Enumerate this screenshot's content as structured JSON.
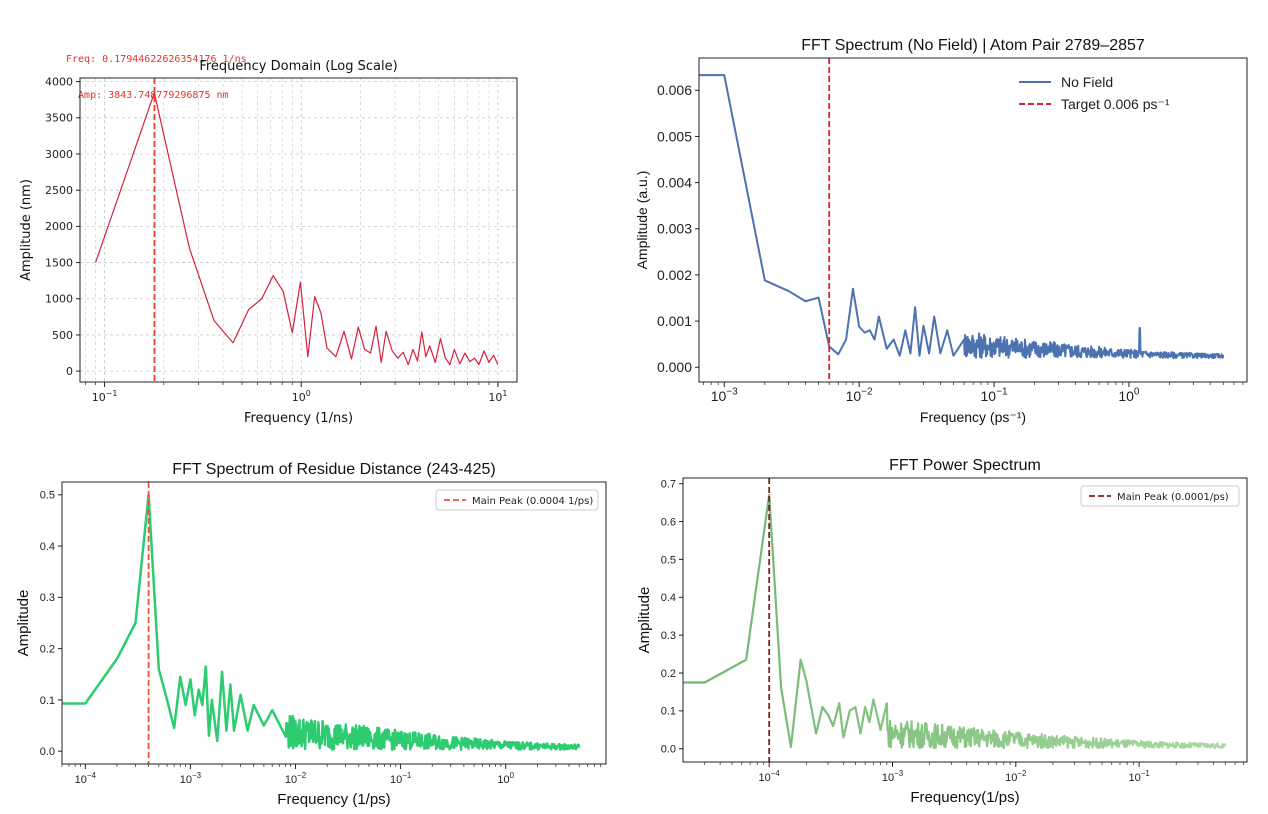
{
  "readout": {
    "freq": "Freq: 0.17944622626354176 1/ns",
    "amp": "  Amp: 3843.748779296875 nm"
  },
  "chart_data": [
    {
      "type": "line",
      "title": "Frequency Domain (Log Scale)",
      "xlabel": "Frequency (1/ns)",
      "ylabel": "Amplitude (nm)",
      "xscale": "log",
      "xlim": [
        0.075,
        12.5
      ],
      "ylim": [
        -150,
        4050
      ],
      "yticks": [
        "0",
        "500",
        "1000",
        "1500",
        "2000",
        "2500",
        "3000",
        "3500",
        "4000"
      ],
      "xticks": [
        {
          "value": 0.1,
          "base": "10",
          "exp": "−1"
        },
        {
          "value": 1,
          "base": "10",
          "exp": "0"
        },
        {
          "value": 10,
          "base": "10",
          "exp": "1"
        }
      ],
      "grid": true,
      "color": "#d6213b",
      "vline": {
        "x": 0.1794,
        "color": "#e8402a"
      },
      "x": [
        0.09,
        0.179,
        0.27,
        0.36,
        0.45,
        0.54,
        0.63,
        0.72,
        0.81,
        0.9,
        0.99,
        1.08,
        1.17,
        1.26,
        1.35,
        1.5,
        1.65,
        1.8,
        1.95,
        2.1,
        2.25,
        2.4,
        2.55,
        2.7,
        2.9,
        3.1,
        3.3,
        3.5,
        3.7,
        3.9,
        4.1,
        4.3,
        4.5,
        4.8,
        5.1,
        5.4,
        5.7,
        6.0,
        6.4,
        6.8,
        7.2,
        7.6,
        8.0,
        8.5,
        9.0,
        9.5,
        10.0
      ],
      "values": [
        1500,
        3844,
        1700,
        700,
        390,
        850,
        1000,
        1320,
        1100,
        530,
        1230,
        200,
        1030,
        800,
        320,
        200,
        550,
        170,
        610,
        300,
        250,
        620,
        120,
        550,
        280,
        180,
        260,
        90,
        300,
        140,
        540,
        200,
        350,
        120,
        450,
        180,
        90,
        300,
        100,
        250,
        130,
        180,
        90,
        280,
        120,
        220,
        90
      ]
    },
    {
      "type": "line",
      "title": "FFT Spectrum (No Field) | Atom Pair 2789–2857",
      "xlabel": "Frequency (ps⁻¹)",
      "ylabel": "Amplitude (a.u.)",
      "xscale": "log",
      "xlim": [
        0.00065,
        7.5
      ],
      "ylim": [
        -0.00032,
        0.0067
      ],
      "yticks": [
        {
          "value": 0,
          "label": "0.000"
        },
        {
          "value": 0.001,
          "label": "0.001"
        },
        {
          "value": 0.002,
          "label": "0.002"
        },
        {
          "value": 0.003,
          "label": "0.003"
        },
        {
          "value": 0.004,
          "label": "0.004"
        },
        {
          "value": 0.005,
          "label": "0.005"
        },
        {
          "value": 0.006,
          "label": "0.006"
        }
      ],
      "xticks": [
        {
          "value": 0.001,
          "base": "10",
          "exp": "−3"
        },
        {
          "value": 0.01,
          "base": "10",
          "exp": "−2"
        },
        {
          "value": 0.1,
          "base": "10",
          "exp": "−1"
        },
        {
          "value": 1,
          "base": "10",
          "exp": "0"
        }
      ],
      "grid": false,
      "color": "#4c72b0",
      "vline": {
        "x": 0.006,
        "color": "#e0202a"
      },
      "legend": [
        {
          "label": "No Field",
          "style": "solid",
          "color": "#4c72b0"
        },
        {
          "label": "Target 0.006 ps⁻¹",
          "style": "dashed",
          "color": "#e0202a"
        }
      ],
      "legend_position": "top-right",
      "x": [
        0.00065,
        0.001,
        0.002,
        0.003,
        0.004,
        0.005,
        0.006,
        0.007,
        0.008,
        0.009,
        0.01,
        0.011,
        0.012,
        0.013,
        0.014,
        0.016,
        0.018,
        0.02,
        0.022,
        0.024,
        0.026,
        0.028,
        0.03,
        0.033,
        0.036,
        0.04,
        0.045,
        0.05,
        0.06
      ],
      "values": [
        0.00633,
        0.00633,
        0.00188,
        0.00165,
        0.00143,
        0.00151,
        0.00045,
        0.00028,
        0.0006,
        0.0017,
        0.00088,
        0.00075,
        0.0008,
        0.0006,
        0.0011,
        0.0004,
        0.0006,
        0.00025,
        0.0008,
        0.0003,
        0.0013,
        0.00025,
        0.0009,
        0.0003,
        0.0011,
        0.0003,
        0.0008,
        0.00025,
        0.0006
      ],
      "noise": {
        "from": 0.06,
        "to": 5,
        "base": 0.0002,
        "amp": 0.0006,
        "spikes": [
          [
            1.2,
            0.00085
          ]
        ]
      }
    },
    {
      "type": "line",
      "title": "FFT Spectrum of Residue Distance (243-425)",
      "xlabel": "Frequency (1/ps)",
      "ylabel": "Amplitude",
      "xscale": "log",
      "xlim": [
        6e-05,
        9
      ],
      "ylim": [
        -0.025,
        0.525
      ],
      "yticks": [
        {
          "value": 0,
          "label": "0.0"
        },
        {
          "value": 0.1,
          "label": "0.1"
        },
        {
          "value": 0.2,
          "label": "0.2"
        },
        {
          "value": 0.3,
          "label": "0.3"
        },
        {
          "value": 0.4,
          "label": "0.4"
        },
        {
          "value": 0.5,
          "label": "0.5"
        }
      ],
      "xticks": [
        {
          "value": 0.0001,
          "base": "10",
          "exp": "−4"
        },
        {
          "value": 0.001,
          "base": "10",
          "exp": "−3"
        },
        {
          "value": 0.01,
          "base": "10",
          "exp": "−2"
        },
        {
          "value": 0.1,
          "base": "10",
          "exp": "−1"
        },
        {
          "value": 1,
          "base": "10",
          "exp": "0"
        }
      ],
      "grid": false,
      "color": "#2ecc71",
      "vline": {
        "x": 0.0004,
        "color": "#f0503c"
      },
      "legend": [
        {
          "label": "Main Peak (0.0004 1/ps)",
          "style": "dashed",
          "color": "#f0503c"
        }
      ],
      "legend_position": "top-right",
      "x": [
        6e-05,
        0.0001,
        0.0002,
        0.0003,
        0.0004,
        0.0005,
        0.0006,
        0.0007,
        0.0008,
        0.0009,
        0.001,
        0.0011,
        0.0012,
        0.0013,
        0.0014,
        0.0015,
        0.0016,
        0.0018,
        0.002,
        0.0022,
        0.0024,
        0.0026,
        0.003,
        0.0035,
        0.004,
        0.005,
        0.006,
        0.008
      ],
      "values": [
        0.093,
        0.093,
        0.18,
        0.25,
        0.5,
        0.16,
        0.1,
        0.045,
        0.145,
        0.09,
        0.14,
        0.07,
        0.12,
        0.09,
        0.165,
        0.03,
        0.1,
        0.02,
        0.155,
        0.04,
        0.13,
        0.04,
        0.11,
        0.04,
        0.09,
        0.05,
        0.08,
        0.03
      ],
      "noise": {
        "from": 0.008,
        "to": 5,
        "base": 0.003,
        "amp": 0.07
      }
    },
    {
      "type": "line",
      "title": "FFT Power Spectrum",
      "xlabel": "Frequency(1/ps)",
      "ylabel": "Amplitude",
      "xscale": "log",
      "xlim": [
        2e-05,
        0.75
      ],
      "ylim": [
        -0.035,
        0.715
      ],
      "yticks": [
        {
          "value": 0,
          "label": "0.0"
        },
        {
          "value": 0.1,
          "label": "0.1"
        },
        {
          "value": 0.2,
          "label": "0.2"
        },
        {
          "value": 0.3,
          "label": "0.3"
        },
        {
          "value": 0.4,
          "label": "0.4"
        },
        {
          "value": 0.5,
          "label": "0.5"
        },
        {
          "value": 0.6,
          "label": "0.6"
        },
        {
          "value": 0.7,
          "label": "0.7"
        }
      ],
      "xticks": [
        {
          "value": 0.0001,
          "base": "10",
          "exp": "−4"
        },
        {
          "value": 0.001,
          "base": "10",
          "exp": "−3"
        },
        {
          "value": 0.01,
          "base": "10",
          "exp": "−2"
        },
        {
          "value": 0.1,
          "base": "10",
          "exp": "−1"
        }
      ],
      "grid": false,
      "color": "#6fb56f",
      "color_end": "#a8d8a0",
      "vline": {
        "x": 0.0001,
        "color": "#7a1e1e"
      },
      "legend": [
        {
          "label": "Main Peak (0.0001/ps)",
          "style": "dashed",
          "color": "#7a1e1e"
        }
      ],
      "legend_position": "top-right",
      "x": [
        2e-05,
        3e-05,
        6.5e-05,
        0.0001,
        0.000125,
        0.00015,
        0.00018,
        0.0002,
        0.00024,
        0.00027,
        0.0003,
        0.00033,
        0.00037,
        0.0004,
        0.00045,
        0.0005,
        0.00055,
        0.0006,
        0.00065,
        0.0007,
        0.0008,
        0.0009
      ],
      "values": [
        0.175,
        0.175,
        0.235,
        0.67,
        0.16,
        0.005,
        0.235,
        0.18,
        0.04,
        0.11,
        0.09,
        0.06,
        0.12,
        0.03,
        0.1,
        0.11,
        0.04,
        0.11,
        0.07,
        0.13,
        0.05,
        0.12
      ],
      "noise": {
        "from": 0.0009,
        "to": 0.5,
        "base": 0.002,
        "amp": 0.08
      }
    }
  ]
}
